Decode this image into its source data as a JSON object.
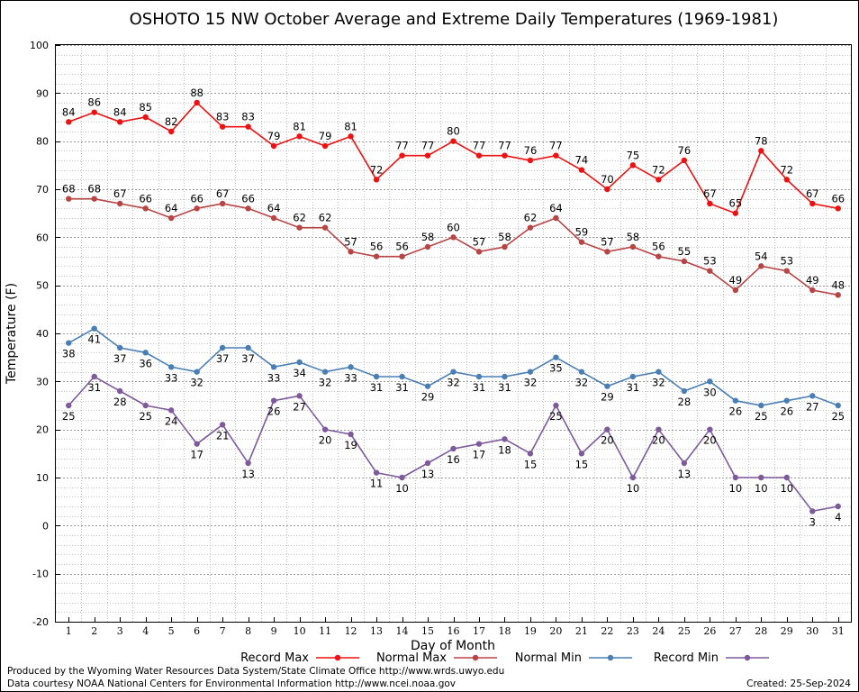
{
  "chart_data": {
    "type": "line",
    "title": "OSHOTO 15 NW October Average and Extreme Daily Temperatures (1969-1981)",
    "xlabel": "Day of Month",
    "ylabel": "Temperature (F)",
    "ylim": [
      -20,
      100
    ],
    "yticks": [
      "-20",
      "-10",
      "0",
      "10",
      "20",
      "30",
      "40",
      "50",
      "60",
      "70",
      "80",
      "90",
      "100"
    ],
    "x": [
      "1",
      "2",
      "3",
      "4",
      "5",
      "6",
      "7",
      "8",
      "9",
      "10",
      "11",
      "12",
      "13",
      "14",
      "15",
      "16",
      "17",
      "18",
      "19",
      "20",
      "21",
      "22",
      "23",
      "24",
      "25",
      "26",
      "27",
      "28",
      "29",
      "30",
      "31"
    ],
    "grid": true,
    "legend_position": "bottom",
    "series": [
      {
        "name": "Record Max",
        "color": "#ee1111",
        "label_pos": "above",
        "values": [
          84,
          86,
          84,
          85,
          82,
          88,
          83,
          83,
          79,
          81,
          79,
          81,
          72,
          77,
          77,
          80,
          77,
          77,
          76,
          77,
          74,
          70,
          75,
          72,
          76,
          67,
          65,
          78,
          72,
          67,
          66
        ]
      },
      {
        "name": "Normal Max",
        "color": "#b84444",
        "label_pos": "above",
        "values": [
          68,
          68,
          67,
          66,
          64,
          66,
          67,
          66,
          64,
          62,
          62,
          57,
          56,
          56,
          58,
          60,
          57,
          58,
          62,
          64,
          59,
          57,
          58,
          56,
          55,
          53,
          49,
          54,
          53,
          49,
          48
        ]
      },
      {
        "name": "Normal Min",
        "color": "#4a7fb5",
        "label_pos": "below",
        "values": [
          38,
          41,
          37,
          36,
          33,
          32,
          37,
          37,
          33,
          34,
          32,
          33,
          31,
          31,
          29,
          32,
          31,
          31,
          32,
          35,
          32,
          29,
          31,
          32,
          28,
          30,
          26,
          25,
          26,
          27,
          25
        ]
      },
      {
        "name": "Record Min",
        "color": "#7e5a9b",
        "label_pos": "below",
        "values": [
          25,
          31,
          28,
          25,
          24,
          17,
          21,
          13,
          26,
          27,
          20,
          19,
          11,
          10,
          13,
          16,
          17,
          18,
          15,
          25,
          15,
          20,
          10,
          20,
          13,
          20,
          10,
          10,
          10,
          3,
          4
        ]
      }
    ]
  },
  "footer": {
    "line1": "Produced by the Wyoming Water Resources Data System/State Climate Office http://www.wrds.uwyo.edu",
    "line2": "Data courtesy NOAA National Centers for Environmental Information http://www.ncei.noaa.gov",
    "created": "Created:  25-Sep-2024"
  }
}
